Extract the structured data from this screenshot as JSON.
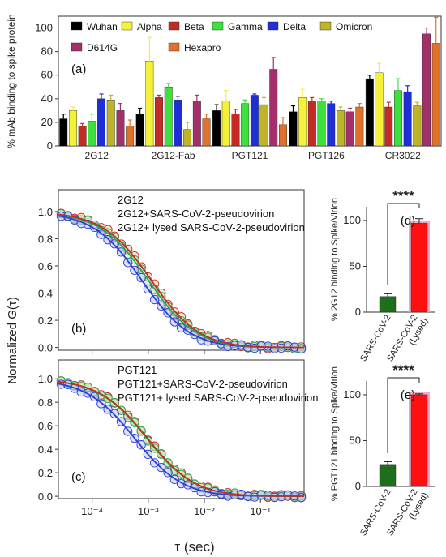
{
  "colors": {
    "Wuhan": "#000000",
    "Alpha": "#f5f03a",
    "Beta": "#c42b25",
    "Gamma": "#3ee03e",
    "Delta": "#1f2fd6",
    "Omicron": "#bdb428",
    "D614G": "#a3306b",
    "Hexapro": "#e0702a",
    "fcs_blue": "#2d3cd6",
    "fcs_green": "#2aa85a",
    "fcs_red": "#c42b25",
    "dark_green": "#1f6e1c",
    "bright_red": "#ff1010",
    "pink_highlight": "#f4a6c4"
  },
  "chart_data": [
    {
      "id": "a",
      "type": "bar",
      "panel_label": "(a)",
      "ylabel": "% mAb binding to spike protein",
      "ylim": [
        0,
        110
      ],
      "yticks": [
        0,
        20,
        40,
        60,
        80,
        100
      ],
      "categories": [
        "2G12",
        "2G12-Fab",
        "PGT121",
        "PGT126",
        "CR3022"
      ],
      "series": [
        {
          "name": "Wuhan",
          "values": [
            23,
            27,
            30,
            29,
            57
          ],
          "errors": [
            4,
            5,
            5,
            5,
            3
          ]
        },
        {
          "name": "Alpha",
          "values": [
            30,
            72,
            38,
            41,
            62
          ],
          "errors": [
            3,
            20,
            9,
            7,
            8
          ]
        },
        {
          "name": "Beta",
          "values": [
            17,
            41,
            27,
            38,
            33
          ],
          "errors": [
            2,
            2,
            4,
            3,
            4
          ]
        },
        {
          "name": "Gamma",
          "values": [
            21,
            50,
            36,
            38,
            47
          ],
          "errors": [
            6,
            3,
            3,
            2,
            10
          ]
        },
        {
          "name": "Delta",
          "values": [
            40,
            39,
            43,
            36,
            46
          ],
          "errors": [
            4,
            3,
            1,
            2,
            5
          ]
        },
        {
          "name": "Omicron",
          "values": [
            39,
            14,
            35,
            30,
            34
          ],
          "errors": [
            4,
            6,
            6,
            3,
            3
          ]
        },
        {
          "name": "D614G",
          "values": [
            30,
            38,
            65,
            29,
            95
          ],
          "errors": [
            6,
            5,
            10,
            3,
            5
          ]
        },
        {
          "name": "Hexapro",
          "values": [
            17,
            23,
            18,
            33,
            87
          ],
          "errors": [
            5,
            4,
            6,
            3,
            22
          ]
        }
      ],
      "legend_row1": [
        "Wuhan",
        "Alpha",
        "Beta",
        "Gamma",
        "Delta",
        "Omicron"
      ],
      "legend_row2": [
        "D614G",
        "Hexapro"
      ]
    },
    {
      "id": "b",
      "type": "scatter",
      "panel_label": "(b)",
      "xlabel": "τ (sec)",
      "ylabel": "Normalized G(τ)",
      "xscale": "log",
      "xlim": [
        2.5e-05,
        0.6
      ],
      "ylim": [
        -0.02,
        1.16
      ],
      "yticks": [
        "0.0",
        "0.2",
        "0.4",
        "0.6",
        "0.8",
        "1.0"
      ],
      "xticks": [
        "10⁻⁴",
        "10⁻³",
        "10⁻²",
        "10⁻¹"
      ],
      "legend": [
        "2G12",
        "2G12+SARS-CoV-2-pseudovirion",
        "2G12+ lysed SARS-CoV-2-pseudovirion"
      ],
      "series": [
        {
          "name": "2G12",
          "tau_d": 0.00078,
          "color_key": "fcs_blue"
        },
        {
          "name": "2G12+SARS-CoV-2-pseudovirion",
          "tau_d": 0.00102,
          "color_key": "fcs_green"
        },
        {
          "name": "2G12+ lysed SARS-CoV-2-pseudovirion",
          "tau_d": 0.00115,
          "color_key": "fcs_red"
        }
      ]
    },
    {
      "id": "c",
      "type": "scatter",
      "panel_label": "(c)",
      "xlabel": "τ (sec)",
      "ylabel": "Normalized G(τ)",
      "xscale": "log",
      "xlim": [
        2.5e-05,
        0.6
      ],
      "ylim": [
        -0.02,
        1.16
      ],
      "yticks": [
        "0.0",
        "0.2",
        "0.4",
        "0.6",
        "0.8",
        "1.0"
      ],
      "xticks": [
        "10⁻⁴",
        "10⁻³",
        "10⁻²",
        "10⁻¹"
      ],
      "legend": [
        "PGT121",
        "PGT121+SARS-CoV-2-pseudovirion",
        "PGT121+ lysed SARS-CoV-2-pseudovirion"
      ],
      "series": [
        {
          "name": "PGT121",
          "tau_d": 0.00058,
          "color_key": "fcs_blue"
        },
        {
          "name": "PGT121+SARS-CoV-2-pseudovirion",
          "tau_d": 0.00095,
          "color_key": "fcs_green"
        },
        {
          "name": "PGT121+ lysed SARS-CoV-2-pseudovirion",
          "tau_d": 0.00098,
          "color_key": "fcs_red"
        }
      ]
    },
    {
      "id": "d",
      "type": "bar",
      "panel_label": "(d)",
      "ylabel": "% 2G12 binding to Spike/Virion",
      "ylim": [
        0,
        115
      ],
      "yticks": [
        0,
        50,
        100
      ],
      "categories": [
        "SARS-CoV-2",
        "SARS-CoV-2 (Lysed)"
      ],
      "values": [
        17,
        97
      ],
      "errors": [
        3,
        5
      ],
      "significance": "****"
    },
    {
      "id": "e",
      "type": "bar",
      "panel_label": "(e)",
      "ylabel": "% PGT121 binding to Spike/Virion",
      "ylim": [
        0,
        115
      ],
      "yticks": [
        0,
        50,
        100
      ],
      "categories": [
        "SARS-CoV-2",
        "SARS-CoV-2 (Lysed)"
      ],
      "values": [
        24,
        100
      ],
      "errors": [
        3,
        1
      ],
      "significance": "****"
    }
  ]
}
